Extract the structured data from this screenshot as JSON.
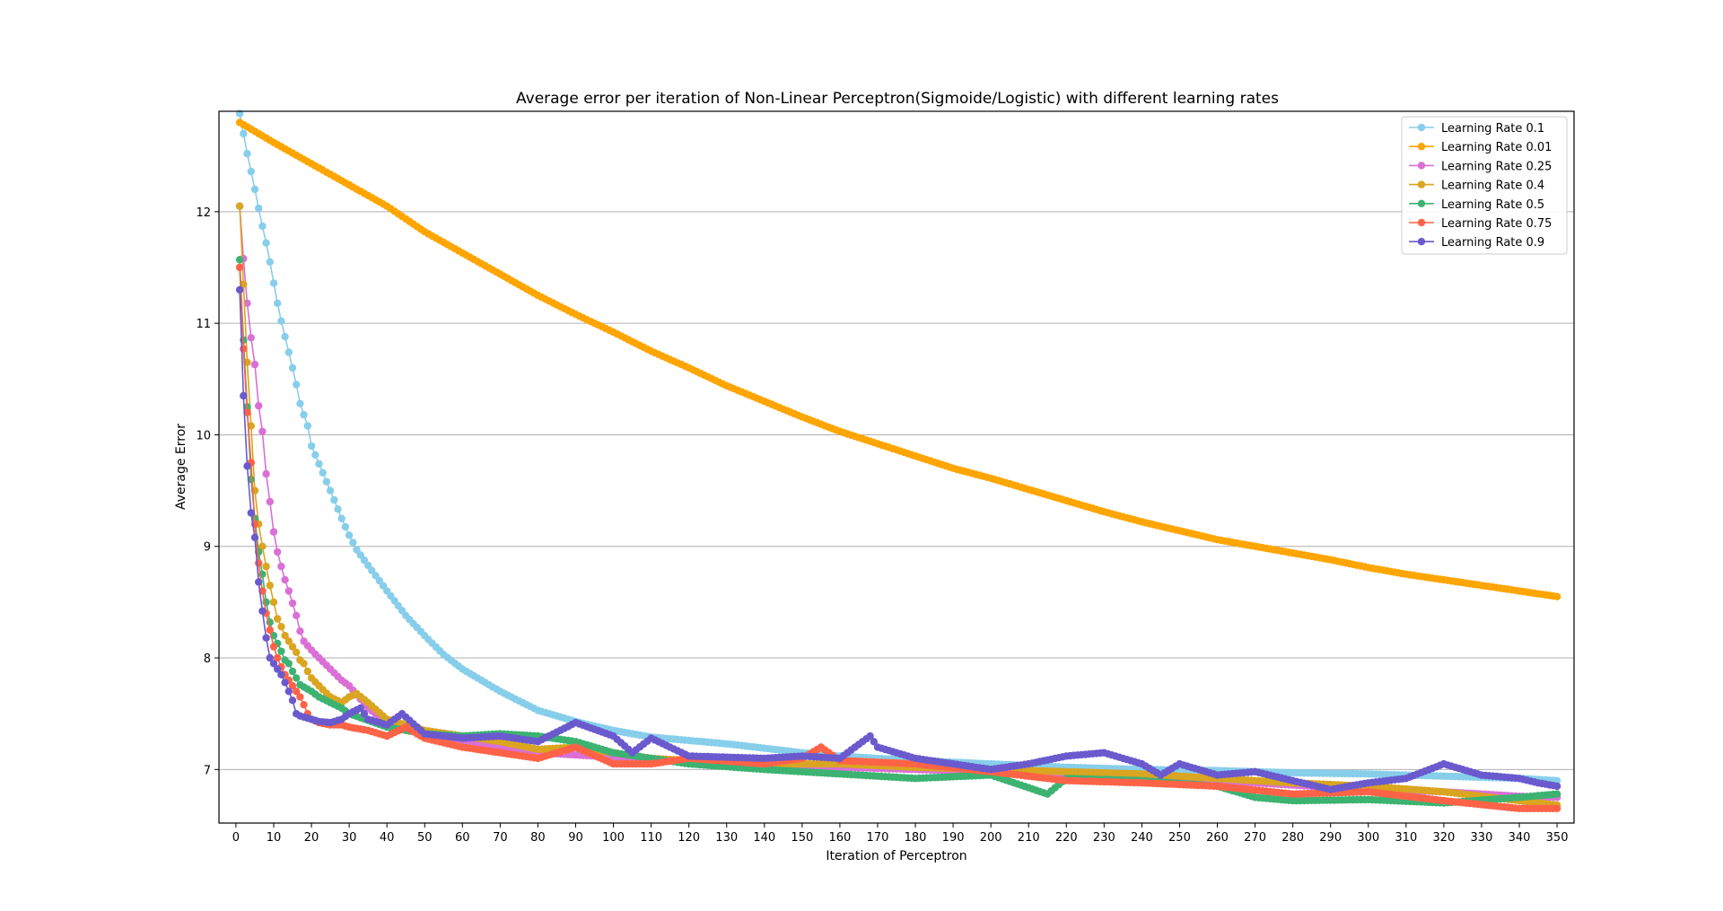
{
  "chart_data": {
    "type": "line",
    "title": "Average error per iteration of Non-Linear Perceptron(Sigmoide/Logistic) with different learning rates",
    "xlabel": "Iteration of Perceptron",
    "ylabel": "Average Error",
    "xlim": [
      -4.5,
      354.5
    ],
    "ylim": [
      6.52,
      12.9
    ],
    "xticks": [
      0,
      10,
      20,
      30,
      40,
      50,
      60,
      70,
      80,
      90,
      100,
      110,
      120,
      130,
      140,
      150,
      160,
      170,
      180,
      190,
      200,
      210,
      220,
      230,
      240,
      250,
      260,
      270,
      280,
      290,
      300,
      310,
      320,
      330,
      340,
      350
    ],
    "xtick_labels": [
      "0",
      "10",
      "20",
      "30",
      "40",
      "50",
      "60",
      "70",
      "80",
      "90",
      "100",
      "110",
      "120",
      "130",
      "140",
      "150",
      "160",
      "170",
      "180",
      "190",
      "200",
      "210",
      "220",
      "230",
      "240",
      "250",
      "260",
      "270",
      "280",
      "290",
      "300",
      "310",
      "320",
      "330",
      "340",
      "350"
    ],
    "yticks": [
      7,
      8,
      9,
      10,
      11,
      12
    ],
    "ytick_labels": [
      "7",
      "8",
      "9",
      "10",
      "11",
      "12"
    ],
    "grid": "horizontal",
    "legend_position": "top-right",
    "markers": "circle",
    "series": [
      {
        "name": "Learning Rate 0.1",
        "color": "#87ceeb",
        "x": [
          1,
          2,
          3,
          4,
          5,
          6,
          7,
          8,
          9,
          10,
          11,
          12,
          13,
          14,
          15,
          16,
          17,
          18,
          19,
          20,
          22,
          25,
          28,
          30,
          32,
          35,
          40,
          45,
          50,
          55,
          60,
          70,
          80,
          90,
          100,
          110,
          120,
          130,
          140,
          150,
          160,
          170,
          180,
          200,
          220,
          240,
          260,
          280,
          300,
          320,
          340,
          350
        ],
        "values": [
          12.88,
          12.7,
          12.52,
          12.36,
          12.2,
          12.03,
          11.87,
          11.72,
          11.55,
          11.36,
          11.18,
          11.02,
          10.88,
          10.74,
          10.6,
          10.45,
          10.28,
          10.18,
          10.08,
          9.9,
          9.74,
          9.5,
          9.25,
          9.1,
          8.97,
          8.83,
          8.6,
          8.38,
          8.2,
          8.03,
          7.9,
          7.7,
          7.53,
          7.43,
          7.35,
          7.29,
          7.26,
          7.23,
          7.19,
          7.15,
          7.12,
          7.1,
          7.08,
          7.05,
          7.02,
          7.0,
          6.99,
          6.97,
          6.96,
          6.94,
          6.92,
          6.9
        ]
      },
      {
        "name": "Learning Rate 0.01",
        "color": "#ffa500",
        "x": [
          1,
          10,
          20,
          30,
          40,
          50,
          60,
          70,
          80,
          90,
          100,
          110,
          120,
          130,
          140,
          150,
          160,
          170,
          180,
          190,
          200,
          210,
          220,
          230,
          240,
          250,
          260,
          270,
          280,
          290,
          300,
          310,
          320,
          330,
          340,
          350
        ],
        "values": [
          12.8,
          12.62,
          12.43,
          12.24,
          12.05,
          11.82,
          11.63,
          11.44,
          11.25,
          11.08,
          10.92,
          10.75,
          10.6,
          10.44,
          10.3,
          10.16,
          10.03,
          9.92,
          9.81,
          9.7,
          9.61,
          9.51,
          9.41,
          9.31,
          9.22,
          9.14,
          9.06,
          9.0,
          8.94,
          8.88,
          8.81,
          8.75,
          8.7,
          8.65,
          8.6,
          8.55
        ]
      },
      {
        "name": "Learning Rate 0.25",
        "color": "#da70d6",
        "x": [
          1,
          2,
          3,
          4,
          5,
          6,
          7,
          8,
          9,
          10,
          11,
          12,
          13,
          14,
          15,
          16,
          17,
          18,
          19,
          20,
          22,
          25,
          28,
          30,
          35,
          40,
          45,
          50,
          60,
          70,
          80,
          90,
          100,
          110,
          120,
          140,
          160,
          180,
          200,
          220,
          240,
          260,
          280,
          300,
          320,
          340,
          350
        ],
        "values": [
          12.05,
          11.58,
          11.18,
          10.87,
          10.63,
          10.26,
          10.03,
          9.65,
          9.4,
          9.13,
          8.95,
          8.82,
          8.7,
          8.6,
          8.49,
          8.38,
          8.24,
          8.15,
          8.11,
          8.07,
          8.0,
          7.9,
          7.8,
          7.75,
          7.55,
          7.42,
          7.38,
          7.32,
          7.25,
          7.2,
          7.15,
          7.13,
          7.11,
          7.1,
          7.07,
          7.04,
          7.02,
          7.0,
          6.98,
          6.95,
          6.93,
          6.9,
          6.86,
          6.82,
          6.8,
          6.76,
          6.75
        ]
      },
      {
        "name": "Learning Rate 0.4",
        "color": "#daa520",
        "x": [
          1,
          2,
          3,
          4,
          5,
          6,
          7,
          8,
          9,
          10,
          11,
          12,
          13,
          14,
          15,
          16,
          17,
          18,
          19,
          20,
          22,
          25,
          28,
          30,
          32,
          35,
          40,
          45,
          50,
          60,
          70,
          80,
          90,
          100,
          110,
          120,
          140,
          160,
          180,
          200,
          220,
          240,
          260,
          280,
          300,
          320,
          340,
          350
        ],
        "values": [
          12.05,
          11.35,
          10.65,
          10.08,
          9.5,
          9.2,
          9.0,
          8.82,
          8.65,
          8.5,
          8.35,
          8.28,
          8.2,
          8.15,
          8.1,
          8.05,
          7.98,
          7.95,
          7.88,
          7.82,
          7.75,
          7.65,
          7.6,
          7.65,
          7.68,
          7.6,
          7.45,
          7.4,
          7.35,
          7.3,
          7.25,
          7.18,
          7.2,
          7.15,
          7.1,
          7.08,
          7.05,
          7.05,
          7.02,
          7.0,
          6.98,
          6.96,
          6.92,
          6.88,
          6.85,
          6.8,
          6.72,
          6.68
        ]
      },
      {
        "name": "Learning Rate 0.5",
        "color": "#3cb371",
        "x": [
          1,
          2,
          3,
          4,
          5,
          6,
          7,
          8,
          9,
          10,
          11,
          12,
          13,
          14,
          15,
          16,
          17,
          18,
          19,
          20,
          22,
          25,
          28,
          30,
          35,
          40,
          45,
          50,
          60,
          70,
          80,
          90,
          100,
          110,
          120,
          140,
          160,
          180,
          200,
          215,
          220,
          240,
          260,
          270,
          280,
          300,
          320,
          340,
          350
        ],
        "values": [
          11.57,
          10.85,
          10.25,
          9.6,
          9.25,
          8.95,
          8.75,
          8.5,
          8.32,
          8.2,
          8.13,
          8.06,
          7.98,
          7.95,
          7.88,
          7.82,
          7.76,
          7.74,
          7.72,
          7.7,
          7.65,
          7.6,
          7.55,
          7.5,
          7.44,
          7.38,
          7.35,
          7.32,
          7.3,
          7.32,
          7.3,
          7.25,
          7.15,
          7.1,
          7.05,
          7.0,
          6.96,
          6.92,
          6.95,
          6.78,
          6.92,
          6.9,
          6.85,
          6.75,
          6.72,
          6.73,
          6.7,
          6.75,
          6.78
        ]
      },
      {
        "name": "Learning Rate 0.75",
        "color": "#ff6347",
        "x": [
          1,
          2,
          3,
          4,
          5,
          6,
          7,
          8,
          9,
          10,
          11,
          12,
          13,
          14,
          15,
          16,
          17,
          18,
          19,
          20,
          22,
          25,
          28,
          30,
          35,
          40,
          45,
          50,
          60,
          70,
          80,
          90,
          100,
          110,
          120,
          140,
          150,
          155,
          160,
          180,
          200,
          220,
          240,
          260,
          280,
          300,
          320,
          340,
          350
        ],
        "values": [
          11.5,
          10.77,
          10.2,
          9.75,
          9.2,
          8.85,
          8.6,
          8.4,
          8.25,
          8.1,
          8.0,
          7.92,
          7.85,
          7.8,
          7.75,
          7.7,
          7.65,
          7.58,
          7.5,
          7.45,
          7.42,
          7.4,
          7.4,
          7.38,
          7.35,
          7.3,
          7.38,
          7.28,
          7.2,
          7.15,
          7.1,
          7.2,
          7.05,
          7.05,
          7.1,
          7.05,
          7.1,
          7.2,
          7.08,
          7.05,
          6.98,
          6.9,
          6.88,
          6.85,
          6.78,
          6.8,
          6.72,
          6.65,
          6.65
        ]
      },
      {
        "name": "Learning Rate 0.9",
        "color": "#6a5acd",
        "x": [
          1,
          2,
          3,
          4,
          5,
          6,
          7,
          8,
          9,
          10,
          11,
          12,
          13,
          14,
          15,
          16,
          17,
          18,
          19,
          20,
          22,
          25,
          28,
          30,
          33,
          35,
          40,
          44,
          50,
          60,
          70,
          80,
          90,
          100,
          105,
          110,
          120,
          140,
          150,
          160,
          168,
          170,
          180,
          190,
          200,
          210,
          220,
          230,
          240,
          245,
          250,
          260,
          270,
          280,
          290,
          300,
          310,
          320,
          330,
          340,
          345,
          350
        ],
        "values": [
          11.3,
          10.35,
          9.72,
          9.3,
          9.08,
          8.68,
          8.42,
          8.18,
          8.0,
          7.95,
          7.9,
          7.85,
          7.78,
          7.7,
          7.62,
          7.5,
          7.48,
          7.47,
          7.46,
          7.45,
          7.43,
          7.42,
          7.45,
          7.5,
          7.55,
          7.45,
          7.4,
          7.5,
          7.32,
          7.28,
          7.3,
          7.25,
          7.42,
          7.3,
          7.15,
          7.28,
          7.12,
          7.1,
          7.12,
          7.1,
          7.3,
          7.2,
          7.1,
          7.05,
          7.0,
          7.05,
          7.12,
          7.15,
          7.05,
          6.95,
          7.05,
          6.95,
          6.98,
          6.9,
          6.82,
          6.88,
          6.92,
          7.05,
          6.95,
          6.92,
          6.88,
          6.85
        ]
      }
    ]
  }
}
